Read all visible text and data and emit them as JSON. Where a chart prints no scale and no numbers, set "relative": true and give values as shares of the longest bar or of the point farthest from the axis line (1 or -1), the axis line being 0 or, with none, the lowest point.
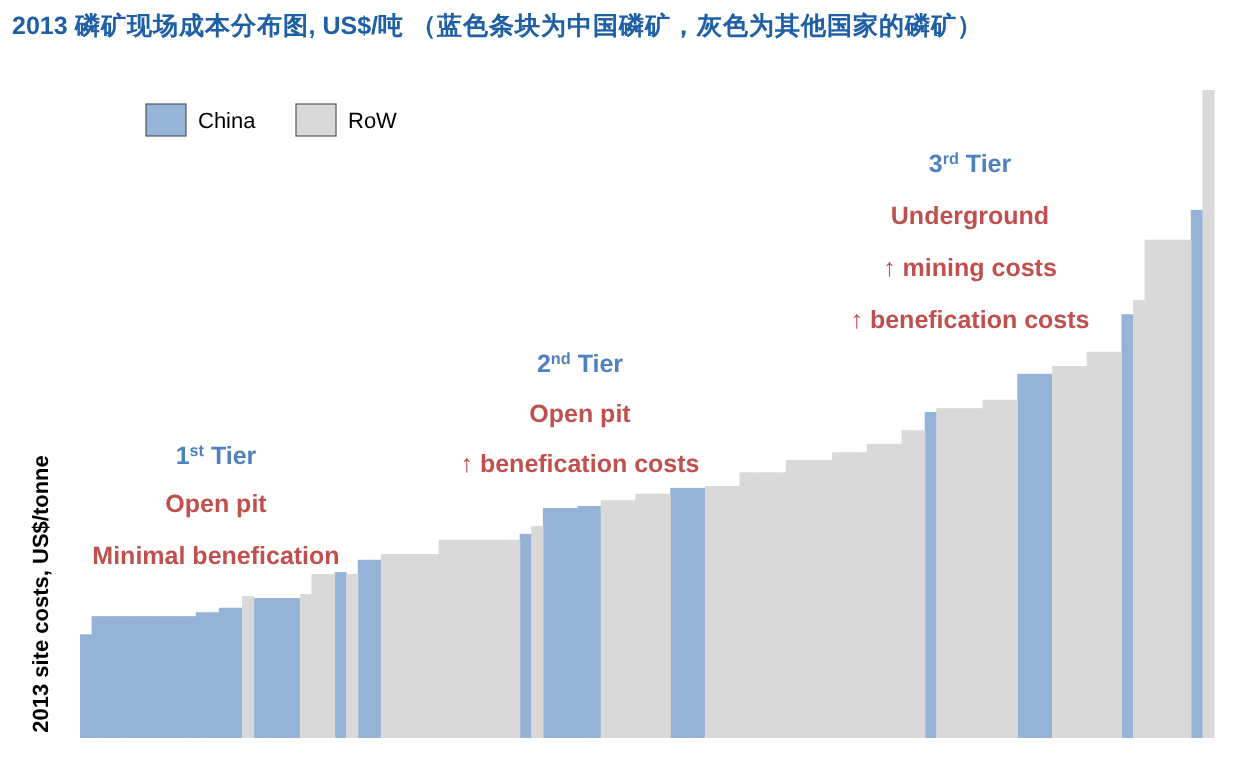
{
  "chart_data": {
    "type": "bar",
    "title": "2013 磷矿现场成本分布图, US$/吨 （蓝色条块为中国磷矿，灰色为其他国家的磷矿）",
    "ylabel": "2013 site costs, US$/tonne",
    "relative": true,
    "legend": "top left",
    "stacked": true,
    "categories": [
      null,
      null,
      null,
      null,
      null,
      null,
      null,
      null,
      null,
      null,
      null,
      null,
      null,
      null,
      null,
      null,
      null,
      null,
      null,
      null,
      null,
      null,
      null,
      null,
      null,
      null,
      null,
      null,
      null,
      null,
      null,
      null,
      null,
      null,
      null,
      null,
      null,
      null,
      null,
      null,
      null,
      null,
      null,
      null,
      null,
      null,
      null,
      null,
      null,
      null,
      null,
      null,
      null,
      null,
      null,
      null,
      null,
      null,
      null,
      null,
      null,
      null,
      null,
      null,
      null,
      null,
      null,
      null,
      null,
      null,
      null,
      null,
      null,
      null,
      null,
      null,
      null,
      null,
      null,
      null,
      null,
      null,
      null,
      null,
      null,
      null,
      null,
      null,
      null,
      null,
      null,
      null,
      null,
      null,
      null,
      null,
      null,
      null
    ],
    "series": [
      {
        "name": "China",
        "color": "#95b3d7",
        "values": [
          0.16,
          0.188,
          0.188,
          0.188,
          0.188,
          0.188,
          0.188,
          0.188,
          0.188,
          0.188,
          0.194,
          0.194,
          0.201,
          0.201,
          null,
          0.216,
          0.216,
          0.216,
          0.216,
          null,
          null,
          null,
          0.256,
          null,
          0.275,
          0.275,
          null,
          null,
          null,
          null,
          null,
          null,
          null,
          null,
          null,
          null,
          null,
          null,
          0.315,
          null,
          0.355,
          0.355,
          0.355,
          0.358,
          0.358,
          null,
          null,
          null,
          null,
          null,
          null,
          0.386,
          0.386,
          0.386,
          null,
          null,
          null,
          null,
          null,
          null,
          null,
          null,
          null,
          null,
          null,
          null,
          null,
          null,
          null,
          null,
          null,
          null,
          null,
          0.503,
          null,
          null,
          null,
          null,
          null,
          null,
          null,
          0.562,
          0.562,
          0.562,
          null,
          null,
          null,
          null,
          null,
          null,
          0.654,
          null,
          null,
          null,
          null,
          null,
          0.815,
          null
        ]
      },
      {
        "name": "RoW",
        "color": "#d9d9d9",
        "values": [
          null,
          null,
          null,
          null,
          null,
          null,
          null,
          null,
          null,
          null,
          null,
          null,
          null,
          null,
          0.219,
          null,
          null,
          null,
          null,
          0.222,
          0.253,
          0.253,
          null,
          0.253,
          null,
          null,
          0.284,
          0.284,
          0.284,
          0.284,
          0.284,
          0.306,
          0.306,
          0.306,
          0.306,
          0.306,
          0.306,
          0.306,
          null,
          0.327,
          null,
          null,
          null,
          null,
          null,
          0.367,
          0.367,
          0.367,
          0.377,
          0.377,
          0.377,
          null,
          null,
          null,
          0.389,
          0.389,
          0.389,
          0.41,
          0.41,
          0.41,
          0.41,
          0.429,
          0.429,
          0.429,
          0.429,
          0.441,
          0.441,
          0.441,
          0.454,
          0.454,
          0.454,
          0.475,
          0.475,
          null,
          0.509,
          0.509,
          0.509,
          0.509,
          0.522,
          0.522,
          0.522,
          null,
          null,
          null,
          0.574,
          0.574,
          0.574,
          0.596,
          0.596,
          0.596,
          null,
          0.676,
          0.769,
          0.769,
          0.769,
          0.769,
          null,
          1
        ]
      }
    ],
    "annotations": [
      "1$^{st}$ Tier",
      "Open pit",
      "Minimal benefication",
      "2$^{nd}$ Tier",
      "Open pit",
      "↑ benefication costs",
      "3$^{rd}$ Tier",
      "Underground",
      "↑ mining costs",
      "↑ benefication costs"
    ]
  }
}
